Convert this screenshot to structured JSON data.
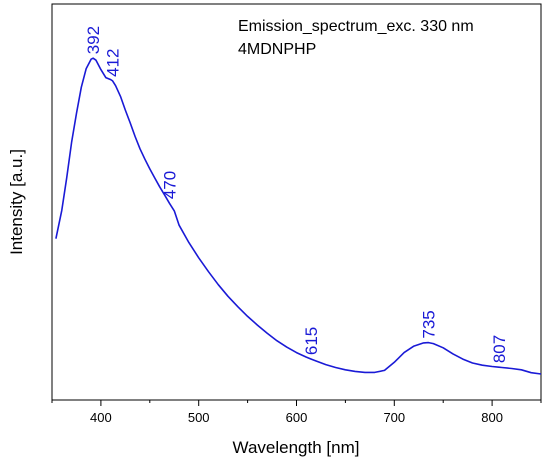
{
  "chart_data": {
    "type": "line",
    "title": "",
    "xlabel": "Wavelength [nm]",
    "ylabel": "Intensity [a.u.]",
    "xlim": [
      350,
      850
    ],
    "ylim": [
      0,
      1.0
    ],
    "x_ticks": [
      400,
      500,
      600,
      700,
      800
    ],
    "y_ticks_shown": false,
    "grid": false,
    "legend_position": "top-right",
    "legend_lines": [
      "Emission_spectrum_exc. 330 nm",
      "4MDNPHP"
    ],
    "line_color": "#1a1ad6",
    "series": [
      {
        "x": [
          354,
          360,
          365,
          370,
          375,
          380,
          385,
          390,
          392,
          395,
          400,
          405,
          410,
          412,
          415,
          420,
          425,
          430,
          435,
          440,
          445,
          450,
          455,
          460,
          465,
          470,
          475,
          480,
          490,
          500,
          510,
          520,
          530,
          540,
          550,
          560,
          570,
          580,
          590,
          600,
          610,
          615,
          620,
          630,
          640,
          650,
          660,
          670,
          680,
          690,
          700,
          710,
          720,
          730,
          735,
          740,
          750,
          760,
          770,
          780,
          790,
          800,
          807,
          810,
          820,
          830,
          840,
          850
        ],
        "y": [
          0.432,
          0.52,
          0.62,
          0.73,
          0.82,
          0.9,
          0.958,
          0.987,
          0.99,
          0.984,
          0.955,
          0.93,
          0.924,
          0.92,
          0.905,
          0.872,
          0.83,
          0.79,
          0.748,
          0.71,
          0.678,
          0.648,
          0.62,
          0.593,
          0.568,
          0.542,
          0.518,
          0.474,
          0.42,
          0.373,
          0.33,
          0.29,
          0.254,
          0.222,
          0.192,
          0.165,
          0.14,
          0.117,
          0.097,
          0.08,
          0.066,
          0.06,
          0.054,
          0.043,
          0.034,
          0.027,
          0.022,
          0.019,
          0.019,
          0.025,
          0.05,
          0.08,
          0.1,
          0.11,
          0.111,
          0.108,
          0.095,
          0.076,
          0.06,
          0.048,
          0.041,
          0.037,
          0.035,
          0.034,
          0.031,
          0.027,
          0.018,
          0.014
        ]
      }
    ],
    "annotations": [
      {
        "text": "392",
        "x": 392,
        "y": 0.99
      },
      {
        "text": "412",
        "x": 412,
        "y": 0.92
      },
      {
        "text": "470",
        "x": 470,
        "y": 0.542
      },
      {
        "text": "615",
        "x": 615,
        "y": 0.06
      },
      {
        "text": "735",
        "x": 735,
        "y": 0.111
      },
      {
        "text": "807",
        "x": 807,
        "y": 0.035
      }
    ]
  }
}
